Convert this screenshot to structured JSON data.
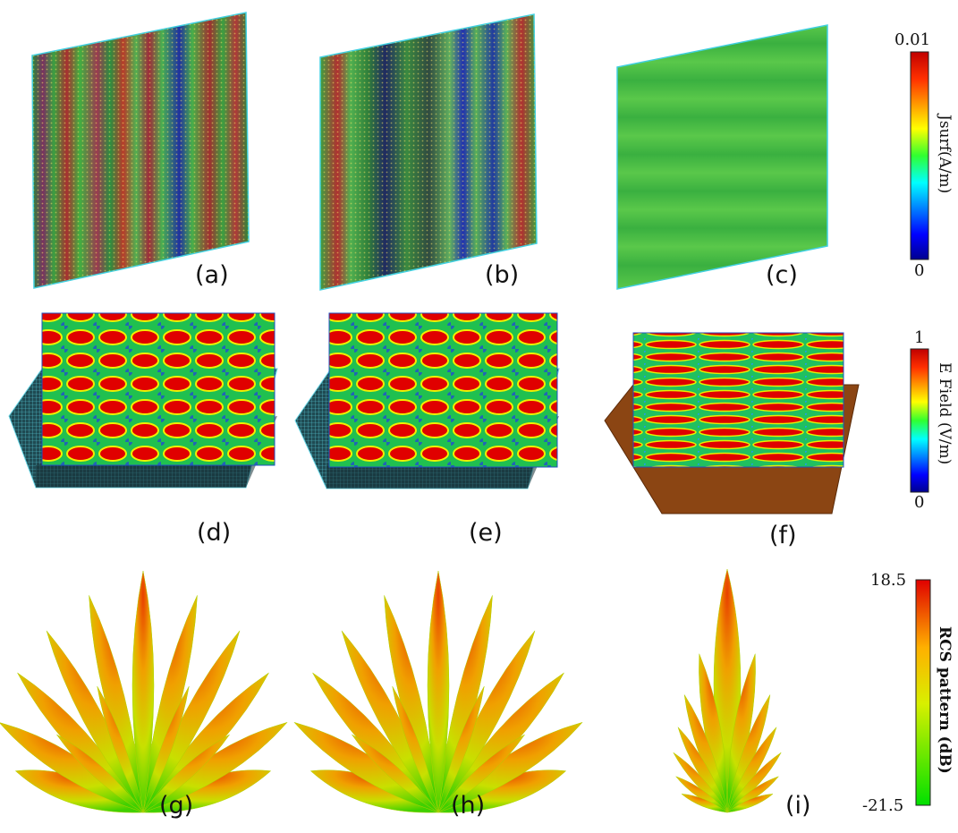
{
  "panels": [
    {
      "id": "a",
      "label": "(a)"
    },
    {
      "id": "b",
      "label": "(b)"
    },
    {
      "id": "c",
      "label": "(c)"
    },
    {
      "id": "d",
      "label": "(d)"
    },
    {
      "id": "e",
      "label": "(e)"
    },
    {
      "id": "f",
      "label": "(f)"
    },
    {
      "id": "g",
      "label": "(g)"
    },
    {
      "id": "h",
      "label": "(h)"
    },
    {
      "id": "i",
      "label": "(i)"
    }
  ],
  "colorbars": {
    "jsurf": {
      "title": "Jsurf(A/m)",
      "max": "0.01",
      "min": "0"
    },
    "efield": {
      "title": "E Field (V/m)",
      "max": "1",
      "min": "0"
    },
    "rcs": {
      "title": "RCS pattern (dB)",
      "max": "18.5",
      "min": "-21.5"
    }
  },
  "colors": {
    "jet": [
      "#00008f",
      "#0000ff",
      "#00ffff",
      "#00ff00",
      "#ffff00",
      "#ff7f00",
      "#ff0000",
      "#8f0000"
    ],
    "rcs_scale": [
      "#e00000",
      "#ff9000",
      "#ffff00",
      "#00e000"
    ],
    "ground_plate": "#8b4513",
    "mesh_plate": "#1d3a40"
  }
}
